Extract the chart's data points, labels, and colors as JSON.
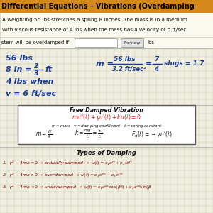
{
  "title": "Differential Equations – Vibrations (Overdamping",
  "problem_text1": "A weighting 56 lbs stretches a spring 8 inches. The mass is in a medium",
  "problem_text2": "with viscous resistance of 4 lbs when the mass has a velocity of 6 ft/sec.",
  "overdamped_label": "stem will be overdamped if",
  "preview_btn": "Preview",
  "lbs_label": "lbs",
  "bg_color": "#f0ede0",
  "grid_color": "#b8cfa0",
  "title_bg": "#d4891a",
  "box_bg": "#ffffff",
  "handwrite_color": "#1a3a9a",
  "red_color": "#cc1111",
  "black_color": "#111111",
  "dark_red": "#8b0000"
}
